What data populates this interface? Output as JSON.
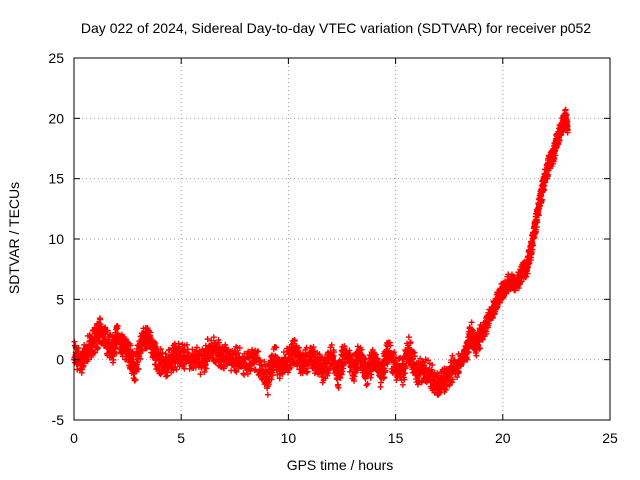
{
  "chart_data": {
    "type": "scatter",
    "title": "Day 022 of 2024, Sidereal Day-to-day VTEC variation (SDTVAR) for receiver p052",
    "xlabel": "GPS time / hours",
    "ylabel": "SDTVAR / TECUs",
    "xlim": [
      0,
      25
    ],
    "ylim": [
      -5,
      25
    ],
    "xticks": [
      0,
      5,
      10,
      15,
      20,
      25
    ],
    "yticks": [
      -5,
      0,
      5,
      10,
      15,
      20,
      25
    ],
    "grid": true,
    "marker": "+",
    "color": "#ff0000",
    "series": [
      {
        "name": "SDTVAR",
        "points": [
          [
            0.0,
            0.5
          ],
          [
            0.3,
            -0.3
          ],
          [
            0.6,
            0.8
          ],
          [
            1.0,
            1.8
          ],
          [
            1.2,
            2.4
          ],
          [
            1.5,
            1.5
          ],
          [
            1.8,
            0.8
          ],
          [
            2.0,
            1.9
          ],
          [
            2.3,
            1.2
          ],
          [
            2.6,
            0.2
          ],
          [
            2.8,
            -0.8
          ],
          [
            3.2,
            1.7
          ],
          [
            3.5,
            1.9
          ],
          [
            3.8,
            0.2
          ],
          [
            4.2,
            -0.5
          ],
          [
            4.6,
            0.2
          ],
          [
            5.0,
            0.4
          ],
          [
            5.5,
            0.1
          ],
          [
            6.0,
            -0.2
          ],
          [
            6.3,
            1.0
          ],
          [
            6.7,
            0.6
          ],
          [
            7.0,
            0.3
          ],
          [
            7.5,
            0.1
          ],
          [
            8.0,
            -0.3
          ],
          [
            8.5,
            0.1
          ],
          [
            9.0,
            -1.8
          ],
          [
            9.3,
            0.2
          ],
          [
            9.6,
            -0.6
          ],
          [
            10.0,
            0.0
          ],
          [
            10.3,
            0.8
          ],
          [
            10.6,
            -0.4
          ],
          [
            11.0,
            0.3
          ],
          [
            11.3,
            -0.2
          ],
          [
            11.6,
            -1.0
          ],
          [
            12.0,
            0.6
          ],
          [
            12.3,
            -1.4
          ],
          [
            12.6,
            0.8
          ],
          [
            13.0,
            -0.8
          ],
          [
            13.3,
            0.4
          ],
          [
            13.6,
            -1.2
          ],
          [
            14.0,
            0.2
          ],
          [
            14.3,
            -1.4
          ],
          [
            14.6,
            0.8
          ],
          [
            15.0,
            -0.6
          ],
          [
            15.3,
            -1.0
          ],
          [
            15.6,
            0.9
          ],
          [
            16.0,
            -1.2
          ],
          [
            16.3,
            -0.6
          ],
          [
            16.6,
            -1.3
          ],
          [
            17.0,
            -2.2
          ],
          [
            17.3,
            -1.6
          ],
          [
            17.6,
            -0.8
          ],
          [
            18.0,
            -0.2
          ],
          [
            18.3,
            0.8
          ],
          [
            18.5,
            2.3
          ],
          [
            18.7,
            0.9
          ],
          [
            18.9,
            1.8
          ],
          [
            19.2,
            2.8
          ],
          [
            19.5,
            4.1
          ],
          [
            19.8,
            5.3
          ],
          [
            20.0,
            5.8
          ],
          [
            20.3,
            6.5
          ],
          [
            20.6,
            6.2
          ],
          [
            20.9,
            7.3
          ],
          [
            21.1,
            7.6
          ],
          [
            21.3,
            9.2
          ],
          [
            21.5,
            11.2
          ],
          [
            21.7,
            13.1
          ],
          [
            21.9,
            14.8
          ],
          [
            22.1,
            16.1
          ],
          [
            22.3,
            16.8
          ],
          [
            22.5,
            18.2
          ],
          [
            22.7,
            19.1
          ],
          [
            22.9,
            20.3
          ],
          [
            23.0,
            19.0
          ]
        ]
      }
    ]
  }
}
